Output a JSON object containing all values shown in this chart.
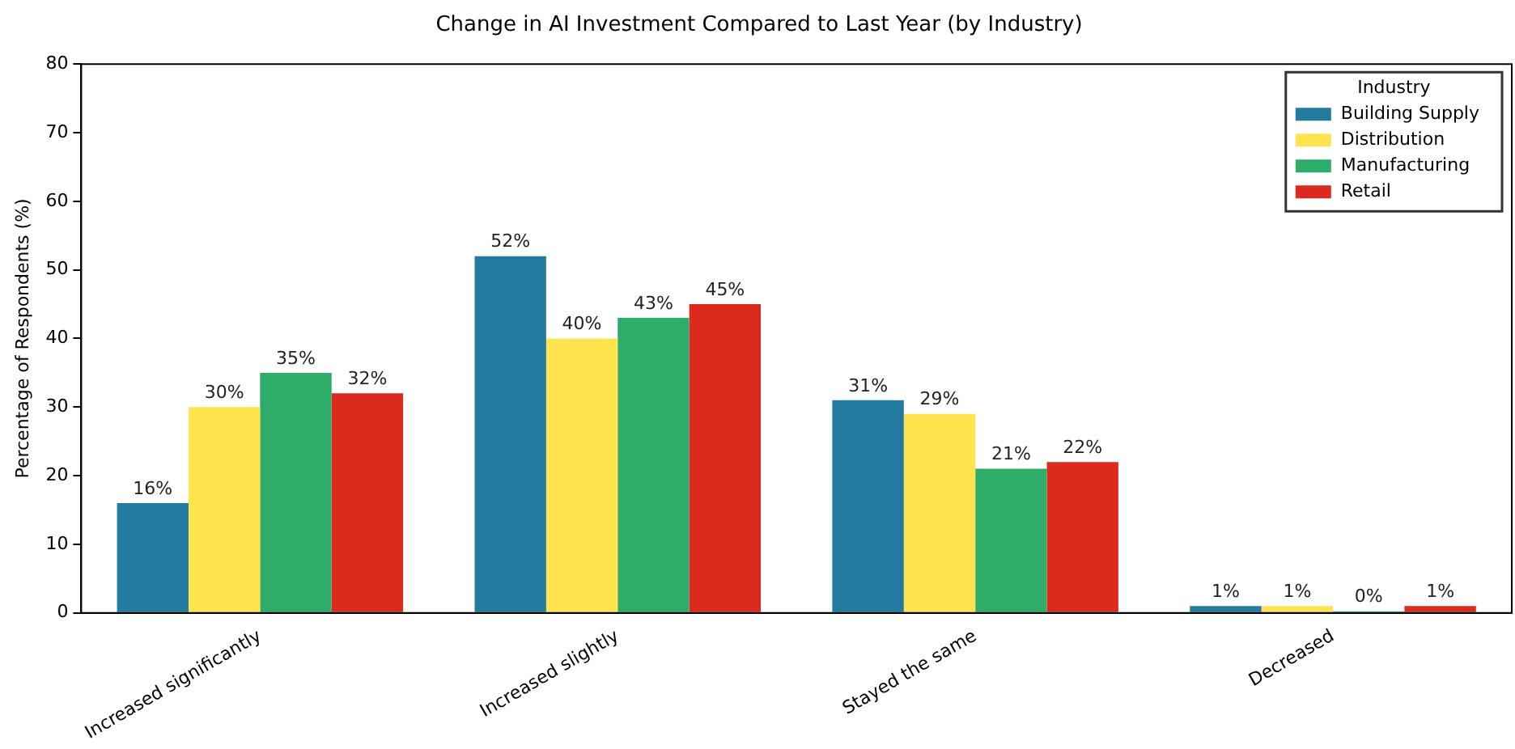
{
  "chart_data": {
    "type": "bar",
    "title": "Change in AI Investment Compared to Last Year (by Industry)",
    "ylabel": "Percentage of Respondents (%)",
    "legend_title": "Industry",
    "categories": [
      "Increased significantly",
      "Increased slightly",
      "Stayed the same",
      "Decreased"
    ],
    "series": [
      {
        "name": "Building Supply",
        "color": "#247ba0",
        "values": [
          16,
          52,
          31,
          1
        ],
        "value_labels": [
          "16%",
          "52%",
          "31%",
          "1%"
        ]
      },
      {
        "name": "Distribution",
        "color": "#ffe44d",
        "values": [
          30,
          40,
          29,
          1
        ],
        "value_labels": [
          "30%",
          "40%",
          "29%",
          "1%"
        ]
      },
      {
        "name": "Manufacturing",
        "color": "#2ead6a",
        "values": [
          35,
          43,
          21,
          0
        ],
        "value_labels": [
          "35%",
          "43%",
          "21%",
          "0%"
        ]
      },
      {
        "name": "Retail",
        "color": "#dc2a1e",
        "values": [
          32,
          45,
          22,
          1
        ],
        "value_labels": [
          "32%",
          "45%",
          "22%",
          "1%"
        ]
      }
    ],
    "ylim": [
      0,
      80
    ],
    "yticks": [
      0,
      10,
      20,
      30,
      40,
      50,
      60,
      70,
      80
    ],
    "grid": false,
    "legend": "top right"
  }
}
